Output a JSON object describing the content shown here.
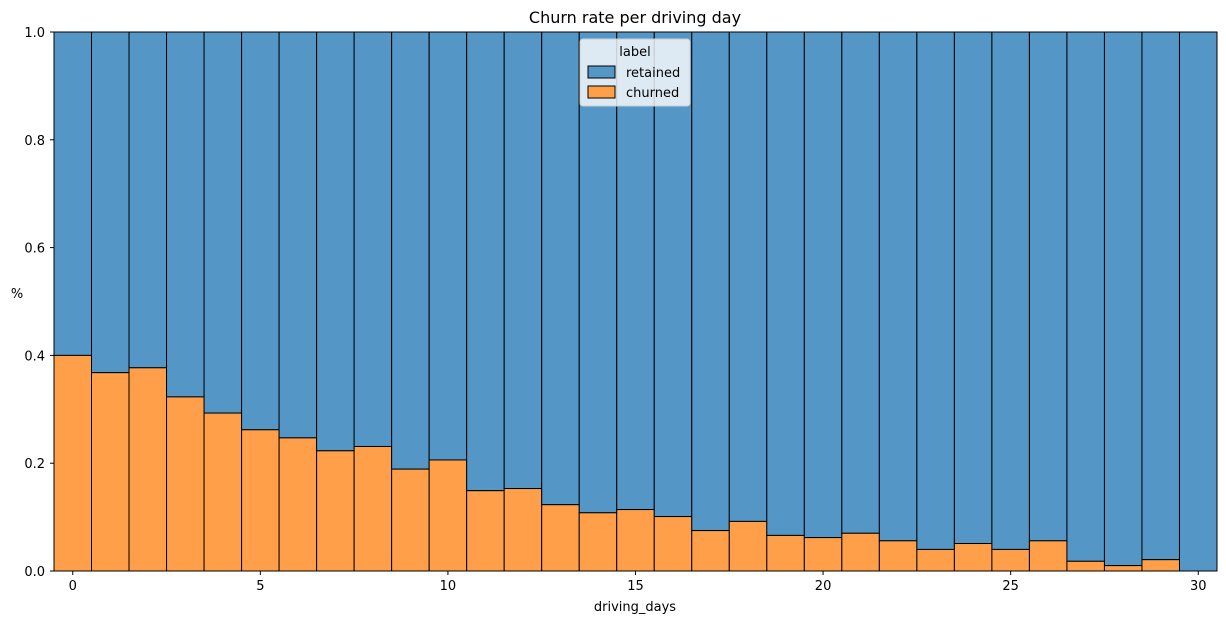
{
  "chart_data": {
    "type": "bar",
    "stacked": "fill",
    "title": "Churn rate per driving day",
    "xlabel": "driving_days",
    "ylabel": "%",
    "xlim": [
      -0.5,
      30.5
    ],
    "ylim": [
      0,
      1
    ],
    "x_ticks": [
      0,
      5,
      10,
      15,
      20,
      25,
      30
    ],
    "y_ticks": [
      0.0,
      0.2,
      0.4,
      0.6,
      0.8,
      1.0
    ],
    "y_tick_labels": [
      "0.0",
      "0.2",
      "0.4",
      "0.6",
      "0.8",
      "1.0"
    ],
    "grid": false,
    "legend": {
      "title": "label",
      "position": "top-center"
    },
    "categories": [
      0,
      1,
      2,
      3,
      4,
      5,
      6,
      7,
      8,
      9,
      10,
      11,
      12,
      13,
      14,
      15,
      16,
      17,
      18,
      19,
      20,
      21,
      22,
      23,
      24,
      25,
      26,
      27,
      28,
      29,
      30
    ],
    "series": [
      {
        "name": "churned",
        "color": "#ff9f4a",
        "values": [
          0.4,
          0.368,
          0.377,
          0.323,
          0.293,
          0.262,
          0.247,
          0.223,
          0.231,
          0.189,
          0.206,
          0.149,
          0.153,
          0.123,
          0.108,
          0.114,
          0.101,
          0.075,
          0.092,
          0.066,
          0.062,
          0.07,
          0.056,
          0.04,
          0.051,
          0.04,
          0.056,
          0.018,
          0.01,
          0.021,
          0.0
        ]
      },
      {
        "name": "retained",
        "color": "#5496c6",
        "values": [
          0.6,
          0.632,
          0.623,
          0.677,
          0.707,
          0.738,
          0.753,
          0.777,
          0.769,
          0.811,
          0.794,
          0.851,
          0.847,
          0.877,
          0.892,
          0.886,
          0.899,
          0.925,
          0.908,
          0.934,
          0.938,
          0.93,
          0.944,
          0.96,
          0.949,
          0.96,
          0.944,
          0.982,
          0.99,
          0.979,
          1.0
        ]
      }
    ]
  }
}
